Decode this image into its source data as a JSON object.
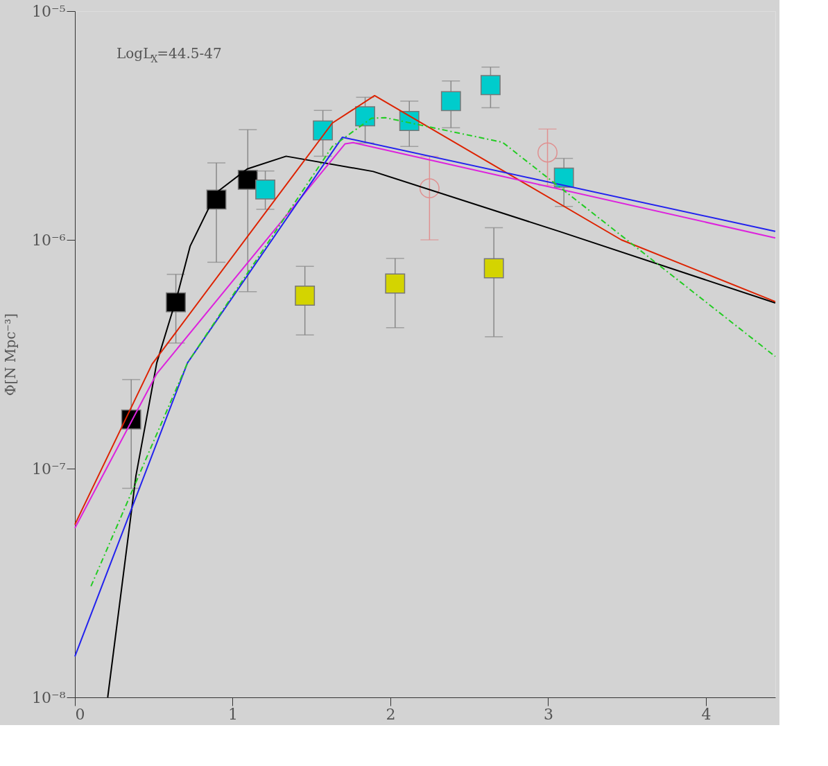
{
  "chart_data": {
    "type": "scatter",
    "ylabel": "Φ[N Mpc⁻³]",
    "annotations": [
      "LogL$_{X}$=44.5-47"
    ],
    "xlim": [
      0,
      4.44
    ],
    "ylim": [
      1e-08,
      1e-05
    ],
    "log": "y",
    "grid": false,
    "xticks": [
      0,
      1,
      2,
      3,
      4
    ],
    "yticks": [
      {
        "value": 1e-08,
        "label": "10⁻⁸"
      },
      {
        "value": 1e-07,
        "label": "10⁻⁷"
      },
      {
        "value": 1e-06,
        "label": "10⁻⁶"
      },
      {
        "value": 1e-05,
        "label": "10⁻⁵"
      }
    ],
    "series": [
      {
        "marker": "square",
        "color": "#000000",
        "x": [
          0.357,
          0.64,
          0.897,
          1.096
        ],
        "values": [
          1.64e-07,
          5.33e-07,
          1.5e-06,
          1.83e-06
        ],
        "errors": [
          [
            8.2e-08,
            2.45e-07
          ],
          [
            3.54e-07,
            7.07e-07
          ],
          [
            7.98e-07,
            2.17e-06
          ],
          [
            5.94e-07,
            3.03e-06
          ]
        ]
      },
      {
        "marker": "square",
        "color": "#00cccc",
        "x": [
          1.207,
          1.572,
          1.84,
          2.12,
          2.384,
          2.635,
          3.1
        ],
        "values": [
          1.66e-06,
          3.01e-06,
          3.47e-06,
          3.31e-06,
          4.04e-06,
          4.75e-06,
          1.87e-06
        ],
        "errors": [
          [
            1.36e-06,
            2e-06
          ],
          [
            2.32e-06,
            3.68e-06
          ],
          [
            2.65e-06,
            4.2e-06
          ],
          [
            2.56e-06,
            4.04e-06
          ],
          [
            3.09e-06,
            4.95e-06
          ],
          [
            3.78e-06,
            5.69e-06
          ],
          [
            1.4e-06,
            2.27e-06
          ]
        ]
      },
      {
        "marker": "square",
        "color": "#d4d400",
        "x": [
          1.458,
          2.03,
          2.656
        ],
        "values": [
          5.7e-07,
          6.44e-07,
          7.51e-07
        ],
        "errors": [
          [
            3.84e-07,
            7.66e-07
          ],
          [
            4.13e-07,
            8.3e-07
          ],
          [
            3.77e-07,
            1.13e-06
          ]
        ]
      },
      {
        "marker": "circle",
        "color": "#e09090",
        "x": [
          2.248,
          2.996
        ],
        "values": [
          1.68e-06,
          2.41e-06
        ],
        "errors": [
          [
            1e-06,
            2.32e-06
          ],
          [
            1.73e-06,
            3.05e-06
          ]
        ]
      },
      {
        "type": "line",
        "line_style": "solid",
        "color": "#000000",
        "x": [
          0.208,
          0.387,
          0.519,
          0.65,
          0.731,
          0.897,
          1.092,
          1.339,
          1.891,
          3.068,
          4.44
        ],
        "values": [
          1e-08,
          9.3e-08,
          2.9e-07,
          5.74e-07,
          9.4e-07,
          1.61e-06,
          2.04e-06,
          2.32e-06,
          1.99e-06,
          1.09e-06,
          5.3e-07
        ]
      },
      {
        "type": "line",
        "line_style": "solid",
        "color": "#dd2200",
        "x": [
          0,
          0.489,
          1.632,
          1.9,
          3.464,
          4.44
        ],
        "values": [
          5.7e-08,
          2.86e-07,
          3.24e-06,
          4.27e-06,
          1e-06,
          5.37e-07
        ]
      },
      {
        "type": "line",
        "line_style": "solid",
        "color": "#dd22dd",
        "x": [
          0,
          0.519,
          1.713,
          1.764,
          4.44
        ],
        "values": [
          5.5e-08,
          2.6e-07,
          2.63e-06,
          2.66e-06,
          1.02e-06
        ]
      },
      {
        "type": "line",
        "line_style": "solid",
        "color": "#2222ee",
        "x": [
          0,
          0.714,
          1.696,
          4.44
        ],
        "values": [
          1.51e-08,
          2.9e-07,
          2.81e-06,
          1.09e-06
        ]
      },
      {
        "type": "line",
        "line_style": "dashdot",
        "color": "#22cc22",
        "x": [
          0.102,
          0.714,
          1.632,
          1.88,
          1.968,
          2.711,
          4.44
        ],
        "values": [
          3.06e-08,
          2.9e-07,
          2.56e-06,
          3.4e-06,
          3.42e-06,
          2.67e-06,
          3.09e-07
        ]
      }
    ]
  }
}
